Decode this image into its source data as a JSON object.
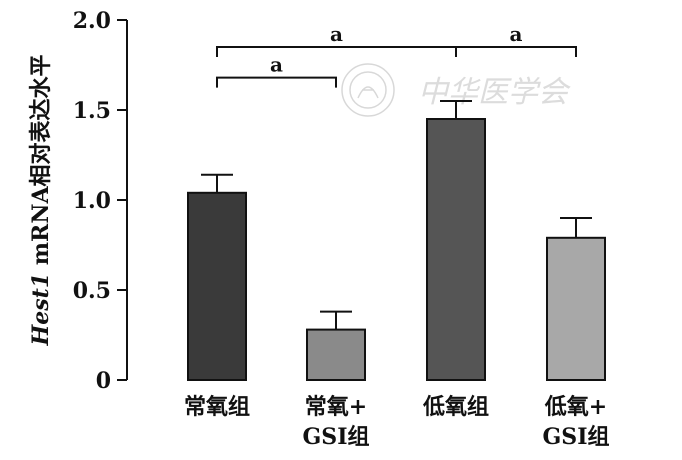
{
  "chart_data": {
    "type": "bar",
    "title": "",
    "xlabel": "",
    "ylabel_italic": "Hest1",
    "ylabel_rest": " mRNA相对表达水平",
    "ylim": [
      0,
      2.0
    ],
    "yticks": [
      "0",
      "0.5",
      "1.0",
      "1.5",
      "2.0"
    ],
    "ytick_values": [
      0,
      0.5,
      1.0,
      1.5,
      2.0
    ],
    "categories": [
      [
        "常氧组"
      ],
      [
        "常氧+",
        "GSI组"
      ],
      [
        "低氧组"
      ],
      [
        "低氧+",
        "GSI组"
      ]
    ],
    "values": [
      1.04,
      0.28,
      1.45,
      0.79
    ],
    "errors": [
      0.1,
      0.1,
      0.1,
      0.11
    ],
    "colors": [
      "#3a3a3a",
      "#8a8a8a",
      "#555555",
      "#a8a8a8"
    ],
    "significance": [
      {
        "from": 0,
        "to": 1,
        "label": "a",
        "level": 1.68
      },
      {
        "from": 0,
        "to": 2,
        "label": "a",
        "level": 1.85
      },
      {
        "from": 2,
        "to": 3,
        "label": "a",
        "level": 1.85
      }
    ]
  },
  "watermark": {
    "text": "中华医学会",
    "icon": "seal-icon"
  }
}
